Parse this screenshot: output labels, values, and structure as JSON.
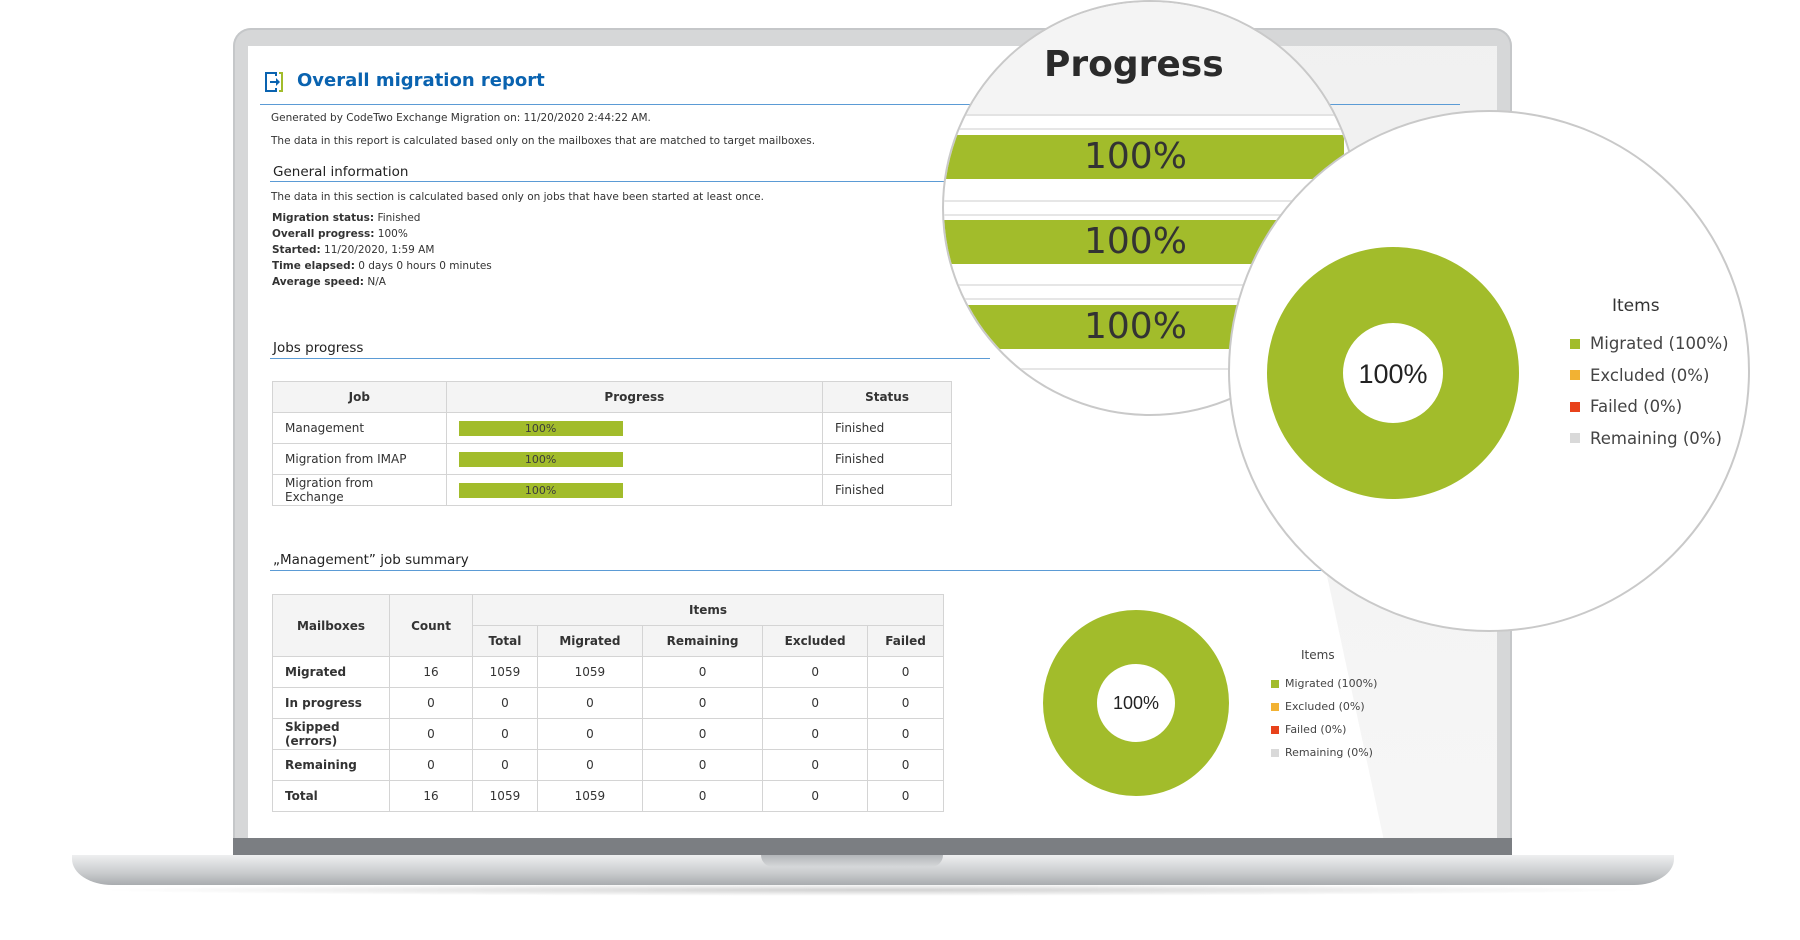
{
  "report": {
    "title": "Overall migration report",
    "generated_line": "Generated by CodeTwo Exchange Migration on: 11/20/2020 2:44:22 AM.",
    "scope_note": "The data in this report is calculated based only on the mailboxes that are matched to target mailboxes."
  },
  "general": {
    "heading": "General information",
    "note": "The data in this section is calculated based only on jobs that have been started at least once.",
    "fields": [
      {
        "label": "Migration status:",
        "value": "Finished"
      },
      {
        "label": "Overall progress:",
        "value": "100%"
      },
      {
        "label": "Started:",
        "value": "11/20/2020, 1:59 AM"
      },
      {
        "label": "Time elapsed:",
        "value": "0 days 0 hours 0 minutes"
      },
      {
        "label": "Average speed:",
        "value": "N/A"
      }
    ]
  },
  "jobs": {
    "heading": "Jobs progress",
    "columns": [
      "Job",
      "Progress",
      "Status"
    ],
    "rows": [
      {
        "job": "Management",
        "progress": "100%",
        "progress_value": 1.0,
        "status": "Finished"
      },
      {
        "job": "Migration from IMAP",
        "progress": "100%",
        "progress_value": 1.0,
        "status": "Finished"
      },
      {
        "job": "Migration from Exchange",
        "progress": "100%",
        "progress_value": 1.0,
        "status": "Finished"
      }
    ]
  },
  "summary": {
    "heading": "„Management” job summary",
    "col_mailboxes": "Mailboxes",
    "col_count": "Count",
    "col_items": "Items",
    "item_columns": [
      "Total",
      "Migrated",
      "Remaining",
      "Excluded",
      "Failed"
    ],
    "rows": [
      {
        "name": "Migrated",
        "values": [
          "16",
          "1059",
          "1059",
          "0",
          "0",
          "0"
        ]
      },
      {
        "name": "In progress",
        "values": [
          "0",
          "0",
          "0",
          "0",
          "0",
          "0"
        ]
      },
      {
        "name": "Skipped (errors)",
        "values": [
          "0",
          "0",
          "0",
          "0",
          "0",
          "0"
        ]
      },
      {
        "name": "Remaining",
        "values": [
          "0",
          "0",
          "0",
          "0",
          "0",
          "0"
        ]
      },
      {
        "name": "Total",
        "values": [
          "16",
          "1059",
          "1059",
          "0",
          "0",
          "0"
        ]
      }
    ]
  },
  "items_chart": {
    "legend_title": "Items",
    "center_label": "100%",
    "legend": [
      {
        "label": "Migrated (100%)",
        "color": "#a2bc2b"
      },
      {
        "label": "Excluded (0%)",
        "color": "#f2b233"
      },
      {
        "label": "Failed (0%)",
        "color": "#e8421b"
      },
      {
        "label": "Remaining (0%)",
        "color": "#d9d9d9"
      }
    ]
  },
  "magnifier_progress": {
    "header": "Progress",
    "bars": [
      "100%",
      "100%",
      "100%"
    ]
  },
  "colors": {
    "accent": "#0a63b0",
    "rule": "#5b9bd5",
    "progress": "#a2bc2b"
  }
}
